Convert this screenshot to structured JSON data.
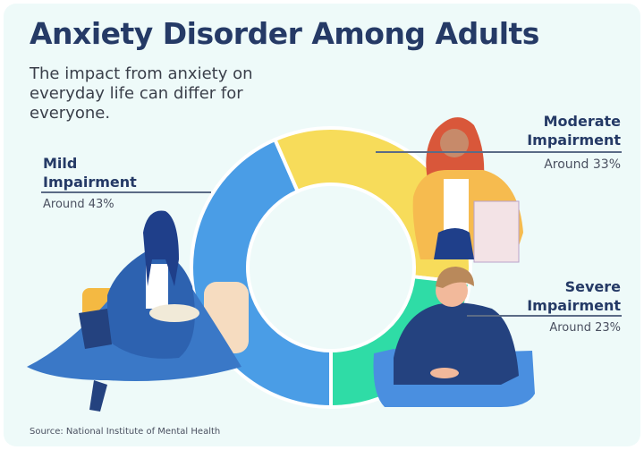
{
  "header": {
    "title": "Anxiety Disorder Among Adults",
    "subtitle": "The impact from anxiety on everyday life can differ for everyone."
  },
  "chart_data": {
    "type": "pie",
    "variant": "donut",
    "categories": [
      "Mild Impairment",
      "Moderate Impairment",
      "Severe Impairment"
    ],
    "values": [
      43,
      33,
      23
    ],
    "value_labels": [
      "Around 43%",
      "Around 33%",
      "Around 23%"
    ],
    "colors": [
      "#4a9de6",
      "#f7dc5a",
      "#2fdca6"
    ],
    "legend": "labels beside slices"
  },
  "labels": {
    "mild": {
      "line1": "Mild",
      "line2": "Impairment",
      "value": "Around 43%"
    },
    "moderate": {
      "line1": "Moderate",
      "line2": "Impairment",
      "value": "Around 33%"
    },
    "severe": {
      "line1": "Severe",
      "line2": "Impairment",
      "value": "Around 23%"
    }
  },
  "footer": {
    "source": "Source: National Institute of Mental Health"
  }
}
